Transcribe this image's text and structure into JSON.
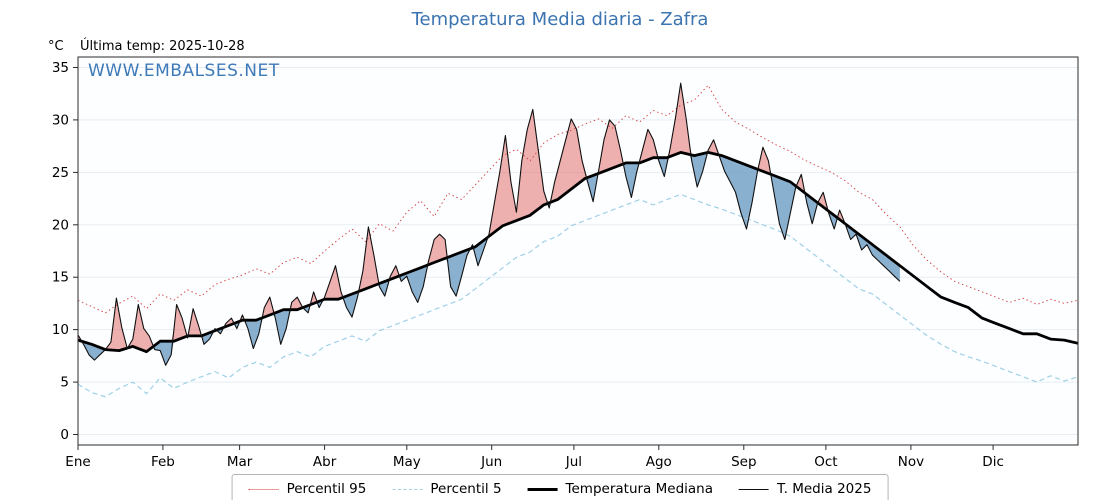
{
  "title": "Temperatura Media diaria - Zafra",
  "header": {
    "unit_label": "°C",
    "last_temp": "Última temp: 2025-10-28"
  },
  "watermark": "WWW.EMBALSES.NET",
  "colors": {
    "title_blue": "#3b74b0",
    "percentil95_red": "#d43d3d",
    "percentil5_blue": "#9fd0e6",
    "median_black": "#000000",
    "media2025_black": "#101010",
    "fill_above": "#e06060",
    "fill_below": "#6d9cc4"
  },
  "legend": [
    {
      "label": "Percentil 95",
      "style": "dotted",
      "color": "#d43d3d"
    },
    {
      "label": "Percentil 5",
      "style": "dashed",
      "color": "#9fd0e6"
    },
    {
      "label": "Temperatura Mediana",
      "style": "solid-thick",
      "color": "#000000"
    },
    {
      "label": "T. Media 2025",
      "style": "solid-thin",
      "color": "#101010"
    }
  ],
  "chart_data": {
    "type": "line",
    "title": "Temperatura Media diaria - Zafra",
    "xlabel": "",
    "ylabel": "°C",
    "ylim": [
      -1,
      36
    ],
    "yticks": [
      0,
      5,
      10,
      15,
      20,
      25,
      30,
      35
    ],
    "grid": true,
    "legend_position": "bottom",
    "x_months": [
      "Ene",
      "Feb",
      "Mar",
      "Abr",
      "May",
      "Jun",
      "Jul",
      "Ago",
      "Sep",
      "Oct",
      "Nov",
      "Dic"
    ],
    "month_start_days": [
      0,
      31,
      59,
      90,
      120,
      151,
      181,
      212,
      243,
      273,
      304,
      334
    ],
    "days_in_year": 365,
    "series": [
      {
        "name": "Percentil 95",
        "step_days": 5,
        "values": [
          12.8,
          12.2,
          11.6,
          12.5,
          13.2,
          12.0,
          13.4,
          12.8,
          13.8,
          13.2,
          14.3,
          14.8,
          15.2,
          15.8,
          15.3,
          16.4,
          16.9,
          16.3,
          17.5,
          18.6,
          19.6,
          18.4,
          20.1,
          19.4,
          21.2,
          22.3,
          20.8,
          23.0,
          22.4,
          23.8,
          25.2,
          26.6,
          27.2,
          26.1,
          27.8,
          28.6,
          29.0,
          29.6,
          30.1,
          29.2,
          30.4,
          29.8,
          30.9,
          30.4,
          31.4,
          31.9,
          33.3,
          31.0,
          29.8,
          29.1,
          28.3,
          27.6,
          27.0,
          26.2,
          25.6,
          25.0,
          24.2,
          23.1,
          22.4,
          21.0,
          19.8,
          18.0,
          16.6,
          15.5,
          14.6,
          14.1,
          13.6,
          13.1,
          12.6,
          13.0,
          12.4,
          12.9,
          12.5,
          12.8
        ]
      },
      {
        "name": "Percentil 5",
        "step_days": 5,
        "values": [
          4.8,
          4.0,
          3.6,
          4.4,
          5.0,
          3.9,
          5.4,
          4.4,
          5.0,
          5.5,
          6.0,
          5.4,
          6.4,
          6.9,
          6.4,
          7.4,
          7.9,
          7.4,
          8.4,
          8.9,
          9.4,
          8.9,
          9.9,
          10.4,
          10.9,
          11.4,
          11.9,
          12.4,
          12.9,
          13.9,
          14.9,
          15.9,
          16.9,
          17.4,
          18.4,
          18.9,
          19.9,
          20.4,
          20.9,
          21.4,
          21.9,
          22.4,
          21.9,
          22.4,
          22.9,
          22.4,
          21.9,
          21.5,
          21.0,
          20.5,
          20.0,
          19.5,
          18.9,
          17.9,
          16.9,
          15.9,
          14.9,
          13.9,
          13.4,
          12.4,
          11.4,
          10.4,
          9.4,
          8.6,
          7.9,
          7.4,
          7.0,
          6.5,
          6.0,
          5.5,
          5.0,
          5.6,
          5.1,
          5.5
        ]
      },
      {
        "name": "Temperatura Mediana",
        "step_days": 5,
        "values": [
          9.0,
          8.6,
          8.1,
          8.0,
          8.4,
          7.9,
          8.9,
          8.9,
          9.4,
          9.4,
          9.9,
          10.4,
          10.9,
          10.9,
          11.4,
          11.9,
          11.9,
          12.4,
          12.9,
          12.9,
          13.4,
          13.9,
          14.4,
          14.9,
          15.4,
          15.9,
          16.4,
          16.9,
          17.4,
          17.9,
          18.9,
          19.9,
          20.4,
          20.9,
          21.9,
          22.4,
          23.4,
          24.4,
          24.9,
          25.4,
          25.9,
          25.9,
          26.4,
          26.4,
          26.9,
          26.6,
          26.9,
          26.6,
          26.1,
          25.6,
          25.1,
          24.6,
          24.1,
          23.1,
          22.1,
          21.1,
          20.1,
          19.1,
          18.1,
          17.1,
          16.1,
          15.1,
          14.1,
          13.1,
          12.6,
          12.1,
          11.1,
          10.6,
          10.1,
          9.6,
          9.6,
          9.1,
          9.0,
          8.7
        ]
      },
      {
        "name": "T. Media 2025",
        "step_days": 2,
        "last_day": 300,
        "values": [
          9.5,
          8.6,
          7.6,
          7.1,
          7.6,
          8.1,
          8.8,
          13.0,
          10.2,
          8.2,
          9.1,
          12.4,
          10.1,
          9.4,
          8.1,
          8.0,
          6.6,
          7.6,
          12.4,
          11.1,
          9.2,
          12.0,
          10.4,
          8.6,
          9.1,
          10.1,
          9.6,
          10.6,
          11.1,
          10.1,
          11.4,
          10.1,
          8.2,
          9.6,
          12.1,
          13.1,
          11.1,
          8.6,
          10.1,
          12.6,
          13.1,
          12.1,
          11.6,
          13.6,
          12.1,
          13.1,
          14.6,
          16.1,
          13.6,
          12.1,
          11.2,
          13.1,
          15.6,
          19.8,
          17.1,
          14.1,
          13.2,
          15.1,
          16.1,
          14.6,
          15.1,
          13.6,
          12.6,
          14.1,
          16.6,
          18.6,
          19.1,
          18.6,
          14.1,
          13.2,
          15.1,
          17.1,
          18.1,
          16.1,
          17.6,
          19.1,
          22.1,
          25.1,
          28.5,
          24.1,
          21.2,
          26.1,
          29.1,
          31.0,
          27.1,
          23.2,
          21.6,
          24.1,
          26.1,
          28.1,
          30.1,
          29.1,
          26.1,
          24.1,
          22.2,
          25.1,
          28.1,
          30.0,
          29.4,
          27.1,
          24.6,
          22.6,
          25.1,
          27.1,
          29.1,
          28.1,
          26.1,
          24.6,
          27.1,
          30.1,
          33.5,
          30.1,
          26.1,
          23.6,
          25.1,
          27.1,
          28.1,
          26.6,
          25.1,
          24.1,
          23.1,
          21.1,
          19.6,
          22.1,
          25.1,
          27.4,
          26.1,
          23.1,
          20.1,
          18.6,
          21.1,
          23.6,
          24.8,
          22.1,
          20.1,
          22.1,
          23.1,
          21.1,
          19.6,
          21.4,
          20.1,
          18.6,
          19.1,
          17.6,
          18.1,
          17.1,
          16.6,
          16.1,
          15.6,
          15.1,
          14.6
        ]
      }
    ]
  }
}
